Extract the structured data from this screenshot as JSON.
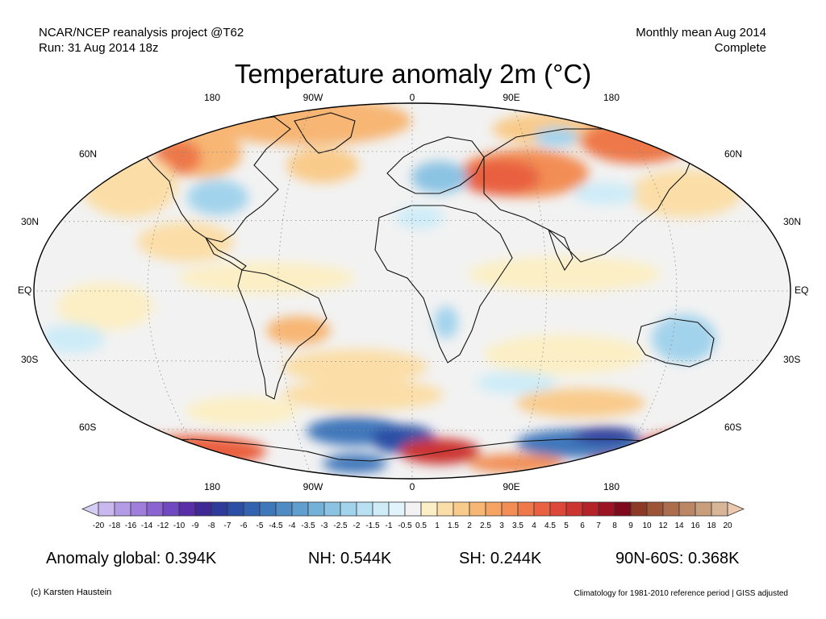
{
  "header": {
    "source": "NCAR/NCEP reanalysis project @T62",
    "run": "Run: 31 Aug 2014 18z",
    "period": "Monthly mean Aug 2014",
    "status": "Complete"
  },
  "title": "Temperature anomaly 2m (°C)",
  "lon_labels_top": [
    "180",
    "90W",
    "0",
    "90E",
    "180"
  ],
  "lon_labels_bottom": [
    "180",
    "90W",
    "0",
    "90E",
    "180"
  ],
  "lat_labels": [
    "60N",
    "30N",
    "EQ",
    "30S",
    "60S"
  ],
  "colorbar": {
    "ticks": [
      "-20",
      "-18",
      "-16",
      "-14",
      "-12",
      "-10",
      "-9",
      "-8",
      "-7",
      "-6",
      "-5",
      "-4.5",
      "-4",
      "-3.5",
      "-3",
      "-2.5",
      "-2",
      "-1.5",
      "-1",
      "-0.5",
      "0.5",
      "1",
      "1.5",
      "2",
      "2.5",
      "3",
      "3.5",
      "4",
      "4.5",
      "5",
      "6",
      "7",
      "8",
      "9",
      "10",
      "12",
      "14",
      "16",
      "18",
      "20"
    ],
    "colors": [
      "#c8b8ee",
      "#b49be6",
      "#a07fdc",
      "#8b64d2",
      "#7048c0",
      "#5a2ea8",
      "#3f2a95",
      "#2f3b9a",
      "#2c4fa6",
      "#3363b0",
      "#3f77bb",
      "#4f8bc5",
      "#5f9ecf",
      "#74b1d9",
      "#8bc3e3",
      "#a2d3ec",
      "#b7e1f3",
      "#cdecf8",
      "#e2f4fb",
      "#f2f2f2",
      "#fcefc5",
      "#fbdea7",
      "#f9cb8b",
      "#f7b673",
      "#f5a263",
      "#f28e55",
      "#ee784a",
      "#e96140",
      "#de4937",
      "#cc3530",
      "#b5232a",
      "#9c1324",
      "#7f0a1c",
      "#8c3a26",
      "#9c5537",
      "#ac6d4c",
      "#bb8663",
      "#c99e7c",
      "#d7b597"
    ]
  },
  "stats": {
    "global": "Anomaly global: 0.394K",
    "nh": "NH: 0.544K",
    "sh": "SH: 0.244K",
    "polar": "90N-60S: 0.368K"
  },
  "footer": {
    "credit": "(c) Karsten Haustein",
    "note": "Climatology for 1981-2010 reference period | GISS adjusted"
  }
}
